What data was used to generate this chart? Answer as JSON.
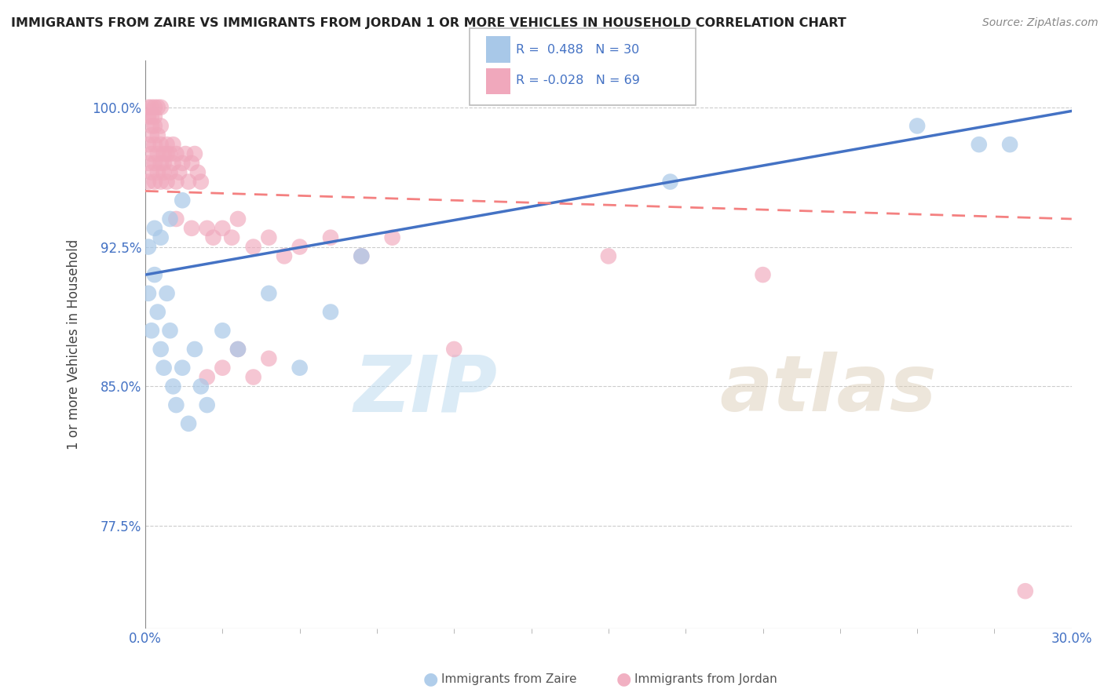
{
  "title": "IMMIGRANTS FROM ZAIRE VS IMMIGRANTS FROM JORDAN 1 OR MORE VEHICLES IN HOUSEHOLD CORRELATION CHART",
  "source": "Source: ZipAtlas.com",
  "ylabel": "1 or more Vehicles in Household",
  "R_zaire": 0.488,
  "N_zaire": 30,
  "R_jordan": -0.028,
  "N_jordan": 69,
  "legend_label_zaire": "Immigrants from Zaire",
  "legend_label_jordan": "Immigrants from Jordan",
  "xlim": [
    0.0,
    0.3
  ],
  "ylim": [
    0.72,
    1.025
  ],
  "yticks": [
    0.775,
    0.85,
    0.925,
    1.0
  ],
  "ytick_labels": [
    "77.5%",
    "85.0%",
    "92.5%",
    "100.0%"
  ],
  "xtick_labels": [
    "0.0%",
    "30.0%"
  ],
  "grid_color": "#cccccc",
  "background_color": "#ffffff",
  "color_zaire": "#a8c8e8",
  "color_jordan": "#f0a8bc",
  "watermark": "ZIPatlas",
  "zaire_x": [
    0.001,
    0.002,
    0.003,
    0.004,
    0.005,
    0.006,
    0.007,
    0.008,
    0.009,
    0.01,
    0.012,
    0.014,
    0.016,
    0.018,
    0.02,
    0.025,
    0.03,
    0.04,
    0.05,
    0.06,
    0.001,
    0.003,
    0.005,
    0.008,
    0.012,
    0.25,
    0.27,
    0.28,
    0.17,
    0.07
  ],
  "zaire_y": [
    0.9,
    0.88,
    0.91,
    0.89,
    0.87,
    0.86,
    0.9,
    0.88,
    0.85,
    0.84,
    0.86,
    0.83,
    0.87,
    0.85,
    0.84,
    0.88,
    0.87,
    0.9,
    0.86,
    0.89,
    0.925,
    0.935,
    0.93,
    0.94,
    0.95,
    0.99,
    0.98,
    0.98,
    0.96,
    0.92
  ],
  "jordan_x": [
    0.001,
    0.001,
    0.001,
    0.002,
    0.002,
    0.002,
    0.002,
    0.003,
    0.003,
    0.003,
    0.003,
    0.004,
    0.004,
    0.004,
    0.005,
    0.005,
    0.005,
    0.005,
    0.006,
    0.006,
    0.006,
    0.007,
    0.007,
    0.007,
    0.008,
    0.008,
    0.009,
    0.009,
    0.01,
    0.01,
    0.011,
    0.012,
    0.013,
    0.014,
    0.015,
    0.016,
    0.017,
    0.018,
    0.02,
    0.022,
    0.025,
    0.028,
    0.03,
    0.035,
    0.04,
    0.045,
    0.05,
    0.06,
    0.07,
    0.08,
    0.001,
    0.002,
    0.003,
    0.004,
    0.005,
    0.001,
    0.002,
    0.003,
    0.01,
    0.015,
    0.02,
    0.025,
    0.03,
    0.035,
    0.04,
    0.1,
    0.15,
    0.2,
    0.285
  ],
  "jordan_y": [
    0.97,
    0.96,
    0.98,
    0.965,
    0.975,
    0.985,
    0.995,
    0.97,
    0.98,
    0.96,
    0.99,
    0.975,
    0.985,
    0.965,
    0.97,
    0.98,
    0.99,
    0.96,
    0.97,
    0.975,
    0.965,
    0.98,
    0.975,
    0.96,
    0.965,
    0.975,
    0.97,
    0.98,
    0.96,
    0.975,
    0.965,
    0.97,
    0.975,
    0.96,
    0.97,
    0.975,
    0.965,
    0.96,
    0.935,
    0.93,
    0.935,
    0.93,
    0.94,
    0.925,
    0.93,
    0.92,
    0.925,
    0.93,
    0.92,
    0.93,
    1.0,
    1.0,
    1.0,
    1.0,
    1.0,
    0.995,
    0.99,
    0.995,
    0.94,
    0.935,
    0.855,
    0.86,
    0.87,
    0.855,
    0.865,
    0.87,
    0.92,
    0.91,
    0.74
  ],
  "blue_line_x0": 0.0,
  "blue_line_y0": 0.91,
  "blue_line_x1": 0.3,
  "blue_line_y1": 0.998,
  "pink_line_x0": 0.0,
  "pink_line_y0": 0.955,
  "pink_line_x1": 0.3,
  "pink_line_y1": 0.94
}
